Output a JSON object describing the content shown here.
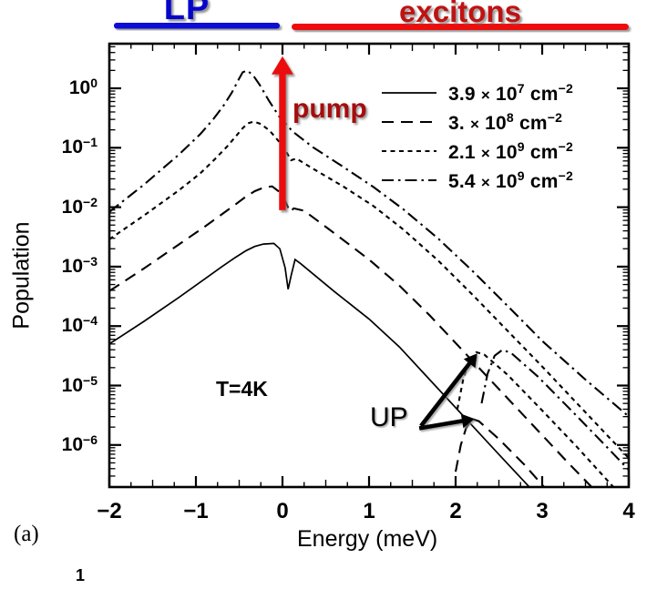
{
  "figure": {
    "panel_label": "(a)",
    "stray_fragment": "1",
    "regions": {
      "lp_label": "LP",
      "lp_color": "#0505cc",
      "lp_bar_color": "#0a0ad6",
      "excitons_label": "excitons",
      "excitons_color": "#c01212",
      "excitons_bar_color": "#ee0a0a"
    },
    "annotations": {
      "pump_label": "pump",
      "pump_color": "#a50d0d",
      "pump_arrow_color": "#eb1111",
      "temperature_label": "T=4K",
      "up_label": "UP"
    }
  },
  "chart_data": {
    "type": "line",
    "xlabel": "Energy (meV)",
    "ylabel": "Population",
    "x_range": [
      -2,
      4
    ],
    "x_tick_labels": [
      "−2",
      "−1",
      "0",
      "1",
      "2",
      "3",
      "4"
    ],
    "x_tick_values": [
      -2,
      -1,
      0,
      1,
      2,
      3,
      4
    ],
    "x_minor_tick_step": 0.25,
    "y_scale": "log10",
    "y_tick_base": "10",
    "y_tick_exponents": [
      "0",
      "−1",
      "−2",
      "−3",
      "−4",
      "−5",
      "−6"
    ],
    "y_range_log10": [
      -6.68,
      0.75
    ],
    "grid": false,
    "legend_position": "upper-right",
    "legend": [
      {
        "coeff": "3.9",
        "times": "×",
        "base": "10",
        "exp": "7",
        "unit": "cm",
        "unit_exp": "−2",
        "style": "solid"
      },
      {
        "coeff": "3.",
        "times": "×",
        "base": "10",
        "exp": "8",
        "unit": "cm",
        "unit_exp": "−2",
        "style": "long-dash"
      },
      {
        "coeff": "2.1",
        "times": "×",
        "base": "10",
        "exp": "9",
        "unit": "cm",
        "unit_exp": "−2",
        "style": "short-dash"
      },
      {
        "coeff": "5.4",
        "times": "×",
        "base": "10",
        "exp": "9",
        "unit": "cm",
        "unit_exp": "−2",
        "style": "dash-dot"
      }
    ],
    "series": [
      {
        "name": "3.9e7 cm^-2 (LP)",
        "style": "solid",
        "role": "lp",
        "points": [
          [
            -2,
            -4.3
          ],
          [
            -1.6,
            -3.92
          ],
          [
            -1.2,
            -3.52
          ],
          [
            -0.9,
            -3.21
          ],
          [
            -0.7,
            -3.0
          ],
          [
            -0.55,
            -2.85
          ],
          [
            -0.42,
            -2.73
          ],
          [
            -0.32,
            -2.66
          ],
          [
            -0.22,
            -2.62
          ],
          [
            -0.1,
            -2.61
          ],
          [
            -0.03,
            -2.7
          ],
          [
            0.03,
            -3.02
          ],
          [
            0.065,
            -3.38
          ],
          [
            0.1,
            -3.15
          ],
          [
            0.145,
            -2.88
          ],
          [
            0.21,
            -2.95
          ],
          [
            0.6,
            -3.42
          ],
          [
            1.0,
            -3.88
          ],
          [
            1.35,
            -4.35
          ],
          [
            1.7,
            -4.9
          ],
          [
            2.1,
            -5.53
          ],
          [
            2.5,
            -6.16
          ],
          [
            2.86,
            -6.72
          ]
        ]
      },
      {
        "name": "3.0e8 cm^-2 (LP)",
        "style": "long-dash",
        "role": "lp",
        "points": [
          [
            -2,
            -3.41
          ],
          [
            -1.6,
            -3.03
          ],
          [
            -1.2,
            -2.63
          ],
          [
            -0.9,
            -2.33
          ],
          [
            -0.7,
            -2.12
          ],
          [
            -0.55,
            -1.96
          ],
          [
            -0.42,
            -1.82
          ],
          [
            -0.32,
            -1.73
          ],
          [
            -0.22,
            -1.67
          ],
          [
            -0.12,
            -1.65
          ],
          [
            -0.02,
            -1.76
          ],
          [
            0.04,
            -1.92
          ],
          [
            0.085,
            -2.08
          ],
          [
            0.13,
            -2.02
          ],
          [
            0.25,
            -2.06
          ],
          [
            0.6,
            -2.44
          ],
          [
            1.0,
            -2.88
          ],
          [
            1.35,
            -3.32
          ],
          [
            1.7,
            -3.82
          ],
          [
            2.1,
            -4.44
          ],
          [
            2.5,
            -5.06
          ],
          [
            2.9,
            -5.68
          ],
          [
            3.3,
            -6.3
          ],
          [
            3.58,
            -6.72
          ]
        ]
      },
      {
        "name": "2.1e9 cm^-2 (LP)",
        "style": "short-dash",
        "role": "lp",
        "points": [
          [
            -2,
            -2.54
          ],
          [
            -1.6,
            -2.14
          ],
          [
            -1.2,
            -1.72
          ],
          [
            -0.95,
            -1.43
          ],
          [
            -0.78,
            -1.19
          ],
          [
            -0.64,
            -0.98
          ],
          [
            -0.54,
            -0.81
          ],
          [
            -0.46,
            -0.67
          ],
          [
            -0.4,
            -0.59
          ],
          [
            -0.33,
            -0.56
          ],
          [
            -0.25,
            -0.6
          ],
          [
            -0.15,
            -0.71
          ],
          [
            -0.05,
            -0.88
          ],
          [
            0.04,
            -1.06
          ],
          [
            0.1,
            -1.21
          ],
          [
            0.16,
            -1.18
          ],
          [
            0.35,
            -1.35
          ],
          [
            0.7,
            -1.65
          ],
          [
            1.05,
            -1.98
          ],
          [
            1.4,
            -2.38
          ],
          [
            1.8,
            -2.9
          ],
          [
            2.2,
            -3.48
          ],
          [
            2.6,
            -4.08
          ],
          [
            3.0,
            -4.68
          ],
          [
            3.5,
            -5.45
          ],
          [
            4.0,
            -6.22
          ]
        ]
      },
      {
        "name": "5.4e9 cm^-2 (LP)",
        "style": "dash-dot",
        "role": "lp",
        "points": [
          [
            -2,
            -2.08
          ],
          [
            -1.6,
            -1.62
          ],
          [
            -1.2,
            -1.12
          ],
          [
            -0.95,
            -0.77
          ],
          [
            -0.8,
            -0.52
          ],
          [
            -0.68,
            -0.29
          ],
          [
            -0.58,
            -0.06
          ],
          [
            -0.51,
            0.14
          ],
          [
            -0.46,
            0.27
          ],
          [
            -0.41,
            0.3
          ],
          [
            -0.34,
            0.22
          ],
          [
            -0.26,
            0.05
          ],
          [
            -0.16,
            -0.2
          ],
          [
            -0.04,
            -0.47
          ],
          [
            0.12,
            -0.73
          ],
          [
            0.35,
            -0.99
          ],
          [
            0.7,
            -1.32
          ],
          [
            1.05,
            -1.66
          ],
          [
            1.4,
            -2.04
          ],
          [
            1.8,
            -2.53
          ],
          [
            2.2,
            -3.08
          ],
          [
            2.6,
            -3.66
          ],
          [
            3.0,
            -4.25
          ],
          [
            3.5,
            -4.9
          ],
          [
            4.0,
            -5.52
          ]
        ]
      },
      {
        "name": "3.0e8 cm^-2 (UP branch)",
        "style": "long-dash",
        "role": "up",
        "points": [
          [
            2.0,
            -6.45
          ],
          [
            2.06,
            -6.0
          ],
          [
            2.12,
            -5.72
          ],
          [
            2.19,
            -5.56
          ],
          [
            2.27,
            -5.6
          ],
          [
            2.5,
            -5.9
          ],
          [
            2.8,
            -6.34
          ],
          [
            3.03,
            -6.72
          ]
        ]
      },
      {
        "name": "2.1e9 cm^-2 (UP branch)",
        "style": "short-dash",
        "role": "up",
        "points": [
          [
            2.02,
            -5.4
          ],
          [
            2.09,
            -4.88
          ],
          [
            2.16,
            -4.58
          ],
          [
            2.24,
            -4.44
          ],
          [
            2.33,
            -4.48
          ],
          [
            2.6,
            -4.82
          ],
          [
            3.0,
            -5.42
          ],
          [
            3.4,
            -6.03
          ],
          [
            3.83,
            -6.72
          ]
        ]
      },
      {
        "name": "5.4e9 cm^-2 (UP branch)",
        "style": "dash-dot",
        "role": "up",
        "points": [
          [
            2.3,
            -5.3
          ],
          [
            2.37,
            -4.8
          ],
          [
            2.45,
            -4.5
          ],
          [
            2.54,
            -4.4
          ],
          [
            2.64,
            -4.45
          ],
          [
            2.95,
            -4.85
          ],
          [
            3.35,
            -5.44
          ],
          [
            3.75,
            -6.04
          ],
          [
            4.0,
            -6.42
          ]
        ]
      }
    ],
    "arrows": {
      "pump": {
        "x_meV": 0,
        "from_log10": -2.05,
        "to_log10": 0.54
      },
      "up": [
        {
          "from": [
            1.6,
            -5.68
          ],
          "to": [
            2.25,
            -4.46
          ]
        },
        {
          "from": [
            1.58,
            -5.72
          ],
          "to": [
            2.22,
            -5.56
          ]
        }
      ]
    }
  }
}
